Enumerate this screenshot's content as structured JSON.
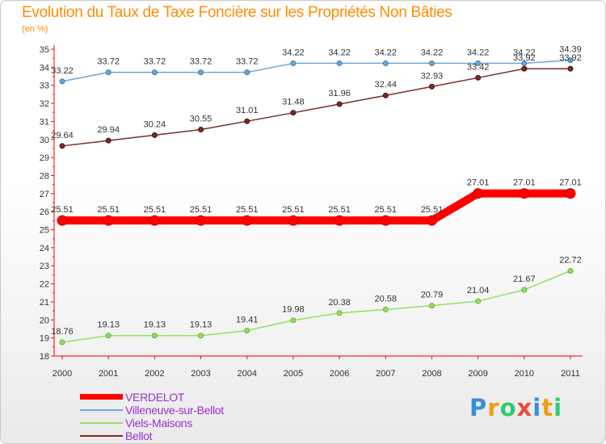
{
  "chart_data": {
    "type": "line",
    "title": "Evolution du Taux de Taxe Foncière sur les Propriétés Non Bâties",
    "ylabel": "(en %)",
    "xlabel": "",
    "ylim": [
      18,
      35
    ],
    "yticks": [
      18,
      19,
      20,
      21,
      22,
      23,
      24,
      25,
      26,
      27,
      28,
      29,
      30,
      31,
      32,
      33,
      34,
      35
    ],
    "x": [
      "2000",
      "2001",
      "2002",
      "2003",
      "2004",
      "2005",
      "2006",
      "2007",
      "2008",
      "2009",
      "2010",
      "2011"
    ],
    "series": [
      {
        "name": "VERDELOT",
        "color": "#ff0000",
        "values": [
          25.51,
          25.51,
          25.51,
          25.51,
          25.51,
          25.51,
          25.51,
          25.51,
          25.51,
          27.01,
          27.01,
          27.01
        ]
      },
      {
        "name": "Villeneuve-sur-Bellot",
        "color": "#6ea8d8",
        "values": [
          33.22,
          33.72,
          33.72,
          33.72,
          33.72,
          34.22,
          34.22,
          34.22,
          34.22,
          34.22,
          34.22,
          34.39
        ]
      },
      {
        "name": "Viels-Maisons",
        "color": "#99dd66",
        "values": [
          18.76,
          19.13,
          19.13,
          19.13,
          19.41,
          19.98,
          20.38,
          20.58,
          20.79,
          21.04,
          21.67,
          22.72
        ]
      },
      {
        "name": "Bellot",
        "color": "#7a2a2a",
        "values": [
          29.64,
          29.94,
          30.24,
          30.55,
          31.01,
          31.48,
          31.96,
          32.44,
          32.93,
          33.42,
          33.92,
          33.92
        ]
      }
    ],
    "data_labels": [
      [
        "25.51",
        "25.51",
        "25.51",
        "25.51",
        "25.51",
        "25.51",
        "25.51",
        "25.51",
        "25.51",
        "27.01",
        "27.01",
        "27.01"
      ],
      [
        "33.22",
        "33.72",
        "33.72",
        "33.72",
        "33.72",
        "34.22",
        "34.22",
        "34.22",
        "34.22",
        "34.22",
        "34.22",
        "34.39"
      ],
      [
        "18.76",
        "19.13",
        "19.13",
        "19.13",
        "19.41",
        "19.98",
        "20.38",
        "20.58",
        "20.79",
        "21.04",
        "21.67",
        "22.72"
      ],
      [
        "29.64",
        "29.94",
        "30.24",
        "30.55",
        "31.01",
        "31.48",
        "31.96",
        "32.44",
        "32.93",
        "33.42",
        "33.92",
        "33.92"
      ]
    ],
    "legend_position": "bottom-left",
    "grid": false
  },
  "legend": {
    "items": [
      {
        "label": "VERDELOT",
        "color": "#ff0000"
      },
      {
        "label": "Villeneuve-sur-Bellot",
        "color": "#6ea8d8"
      },
      {
        "label": "Viels-Maisons",
        "color": "#99dd66"
      },
      {
        "label": "Bellot",
        "color": "#7a2a2a"
      }
    ]
  },
  "logo": {
    "text": "Proxiti",
    "letters": [
      "P",
      "r",
      "o",
      "x",
      "i",
      "t",
      "i"
    ],
    "colors": [
      "#3a8fd6",
      "#f39c12",
      "#2ecc71",
      "#e74c3c",
      "#3a8fd6",
      "#f39c12",
      "#2ecc71"
    ]
  }
}
